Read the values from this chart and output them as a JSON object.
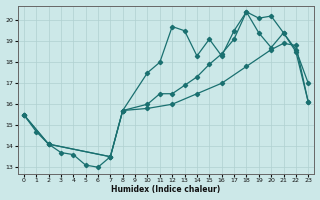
{
  "xlabel": "Humidex (Indice chaleur)",
  "background_color": "#cce8e8",
  "grid_color": "#b0d0d0",
  "line_color": "#1a7070",
  "xlim": [
    -0.5,
    23.5
  ],
  "ylim": [
    12.7,
    20.7
  ],
  "yticks": [
    13,
    14,
    15,
    16,
    17,
    18,
    19,
    20
  ],
  "xticks": [
    0,
    1,
    2,
    3,
    4,
    5,
    6,
    7,
    8,
    9,
    10,
    11,
    12,
    13,
    14,
    15,
    16,
    17,
    18,
    19,
    20,
    21,
    22,
    23
  ],
  "line1_x": [
    0,
    1,
    2,
    3,
    4,
    5,
    6,
    7,
    8,
    10,
    11,
    12,
    13,
    14,
    15,
    16,
    17,
    18,
    19,
    20,
    21,
    22,
    23
  ],
  "line1_y": [
    15.5,
    14.7,
    14.1,
    13.7,
    13.6,
    13.1,
    13.0,
    13.5,
    15.7,
    17.5,
    18.0,
    19.7,
    19.5,
    18.3,
    19.1,
    18.3,
    19.5,
    20.4,
    19.4,
    18.7,
    19.4,
    18.6,
    17.0
  ],
  "line2_x": [
    0,
    2,
    7,
    8,
    10,
    11,
    12,
    13,
    14,
    15,
    16,
    17,
    18,
    19,
    20,
    21,
    22,
    23
  ],
  "line2_y": [
    15.5,
    14.1,
    13.5,
    15.7,
    16.0,
    16.5,
    16.5,
    16.9,
    17.3,
    17.9,
    18.4,
    19.1,
    20.4,
    20.1,
    20.2,
    19.4,
    18.5,
    16.1
  ],
  "line3_x": [
    0,
    2,
    7,
    8,
    10,
    12,
    14,
    16,
    18,
    20,
    21,
    22,
    23
  ],
  "line3_y": [
    15.5,
    14.1,
    13.5,
    15.7,
    15.8,
    16.0,
    16.5,
    17.0,
    17.8,
    18.6,
    18.9,
    18.8,
    16.1
  ]
}
